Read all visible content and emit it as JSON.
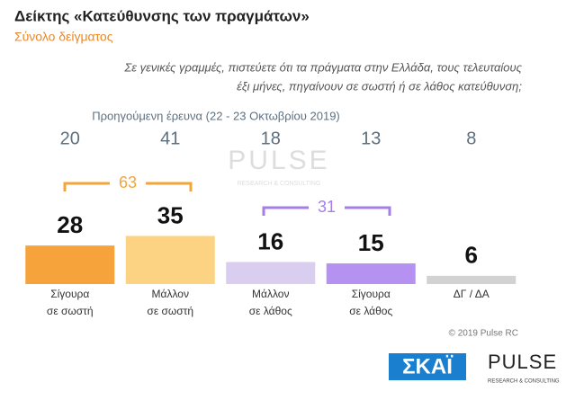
{
  "chart_data": {
    "type": "bar",
    "title": "Δείκτης «Κατεύθυνσης των πραγμάτων»",
    "subtitle": "Σύνολο δείγματος",
    "question": [
      "Σε γενικές γραμμές, πιστεύετε ότι τα πράγματα στην Ελλάδα, τους τελευταίους",
      "έξι μήνες, πηγαίνουν σε σωστή ή σε λάθος κατεύθυνση;"
    ],
    "categories": [
      [
        "Σίγουρα",
        "σε σωστή"
      ],
      [
        "Μάλλον",
        "σε σωστή"
      ],
      [
        "Μάλλον",
        "σε λάθος"
      ],
      [
        "Σίγουρα",
        "σε λάθος"
      ],
      [
        "ΔΓ / ΔΑ"
      ]
    ],
    "series": [
      {
        "name": "Προηγούμενη έρευνα (22 - 23 Οκτωβρίου 2019)",
        "values": [
          20,
          41,
          18,
          13,
          8
        ]
      },
      {
        "values": [
          28,
          35,
          16,
          15,
          6
        ],
        "colors": [
          "#f7a33c",
          "#fcd383",
          "#d9cdf0",
          "#b592f2",
          "#d2d2d2"
        ]
      }
    ],
    "annotations": [
      {
        "value": 63,
        "color": "#f5a43a"
      },
      {
        "value": 31,
        "color": "#a57ee6"
      }
    ],
    "ylim": [
      0,
      100
    ],
    "watermark": "PULSE",
    "watermark_sub": "RESEARCH & CONSULTING",
    "copyright": "© 2019 Pulse RC",
    "logo_left": "ΣΚΑΪ",
    "logo_right": "PULSE",
    "logo_right_sub": "RESEARCH & CONSULTING"
  }
}
